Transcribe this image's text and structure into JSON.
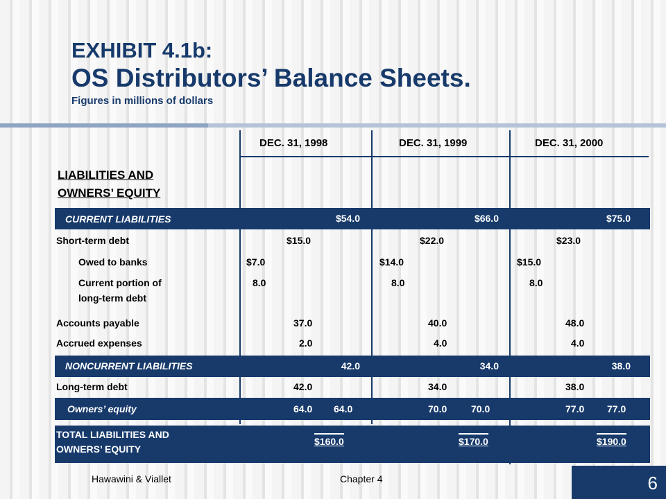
{
  "slide": {
    "title_line1": "EXHIBIT 4.1b:",
    "title_line2": "OS Distributors’ Balance Sheets.",
    "subtitle": "Figures in millions of dollars",
    "footer_left": "Hawawini & Viallet",
    "footer_center": "Chapter 4",
    "page_number": "6"
  },
  "table": {
    "columns": [
      "DEC. 31, 1998",
      "DEC. 31, 1999",
      "DEC. 31, 2000"
    ],
    "heading_line1": "LIABILITIES AND ",
    "heading_line2": "OWNERS’ EQUITY",
    "current_liabilities": {
      "label": "CURRENT LIABILITIES",
      "values": [
        "$54.0",
        "$66.0",
        "$75.0"
      ]
    },
    "short_term_debt": {
      "label": "Short-term debt",
      "values": [
        "$15.0",
        "$22.0",
        "$23.0"
      ]
    },
    "owed_to_banks": {
      "label": "Owed to banks",
      "values": [
        "$7.0",
        "$14.0",
        "$15.0"
      ]
    },
    "current_portion": {
      "label_line1": "Current portion of",
      "label_line2": "long-term debt",
      "values": [
        "8.0",
        "8.0",
        "8.0"
      ]
    },
    "accounts_payable": {
      "label": "Accounts payable",
      "values": [
        "37.0",
        "40.0",
        "48.0"
      ]
    },
    "accrued_expenses": {
      "label": "Accrued expenses",
      "values": [
        "2.0",
        "4.0",
        "4.0"
      ]
    },
    "noncurrent_liabilities": {
      "label": "NONCURRENT LIABILITIES",
      "values": [
        "42.0",
        "34.0",
        "38.0"
      ]
    },
    "long_term_debt": {
      "label": "Long-term debt",
      "values": [
        "42.0",
        "34.0",
        "38.0"
      ]
    },
    "owners_equity": {
      "label": "Owners’ equity",
      "values_a": [
        "64.0",
        "70.0",
        "77.0"
      ],
      "values_b": [
        "64.0",
        "70.0",
        "77.0"
      ]
    },
    "total": {
      "label_line1": "TOTAL LIABILITIES AND",
      "label_line2": "OWNERS’ EQUITY",
      "values": [
        "$160.0",
        "$170.0",
        "$190.0"
      ]
    }
  }
}
